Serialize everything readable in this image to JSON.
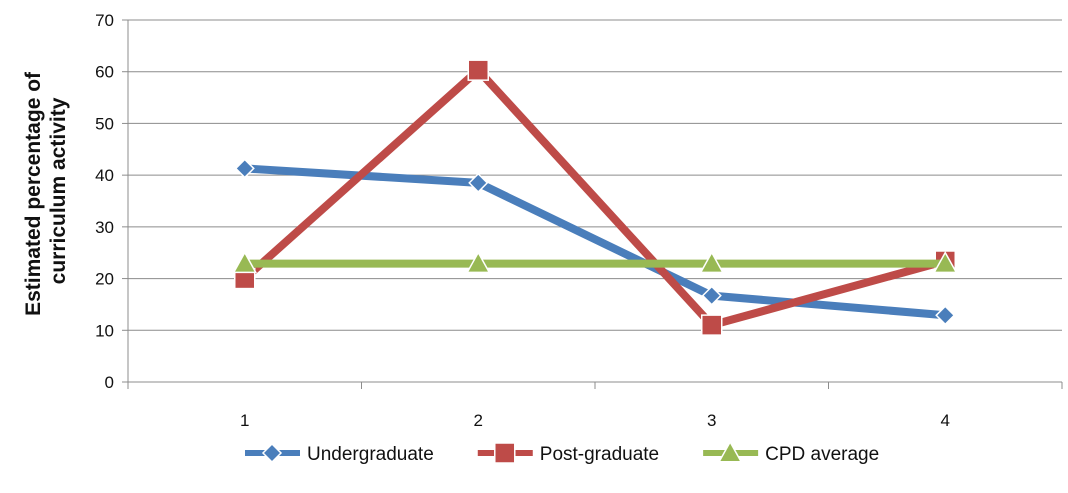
{
  "chart_data": {
    "type": "line",
    "title": "",
    "xlabel": "",
    "ylabel": "Estimated percentage of curriculum activity",
    "ylabel_lines": [
      "Estimated percentage of",
      "curriculum activity"
    ],
    "categories": [
      "1",
      "2",
      "3",
      "4"
    ],
    "ylim": [
      0,
      70
    ],
    "yticks": [
      "0",
      "10",
      "20",
      "30",
      "40",
      "50",
      "60",
      "70"
    ],
    "grid": true,
    "legend_position": "bottom",
    "series": [
      {
        "name": "Undergraduate",
        "values": [
          41.3,
          38.5,
          16.7,
          12.9
        ],
        "color": "#4a7ebb",
        "marker": "diamond"
      },
      {
        "name": "Post-graduate",
        "values": [
          20.0,
          60.3,
          11.0,
          23.4
        ],
        "color": "#be4b48",
        "marker": "square"
      },
      {
        "name": "CPD average",
        "values": [
          22.9,
          22.9,
          22.9,
          22.9
        ],
        "color": "#98b954",
        "marker": "triangle"
      }
    ]
  }
}
